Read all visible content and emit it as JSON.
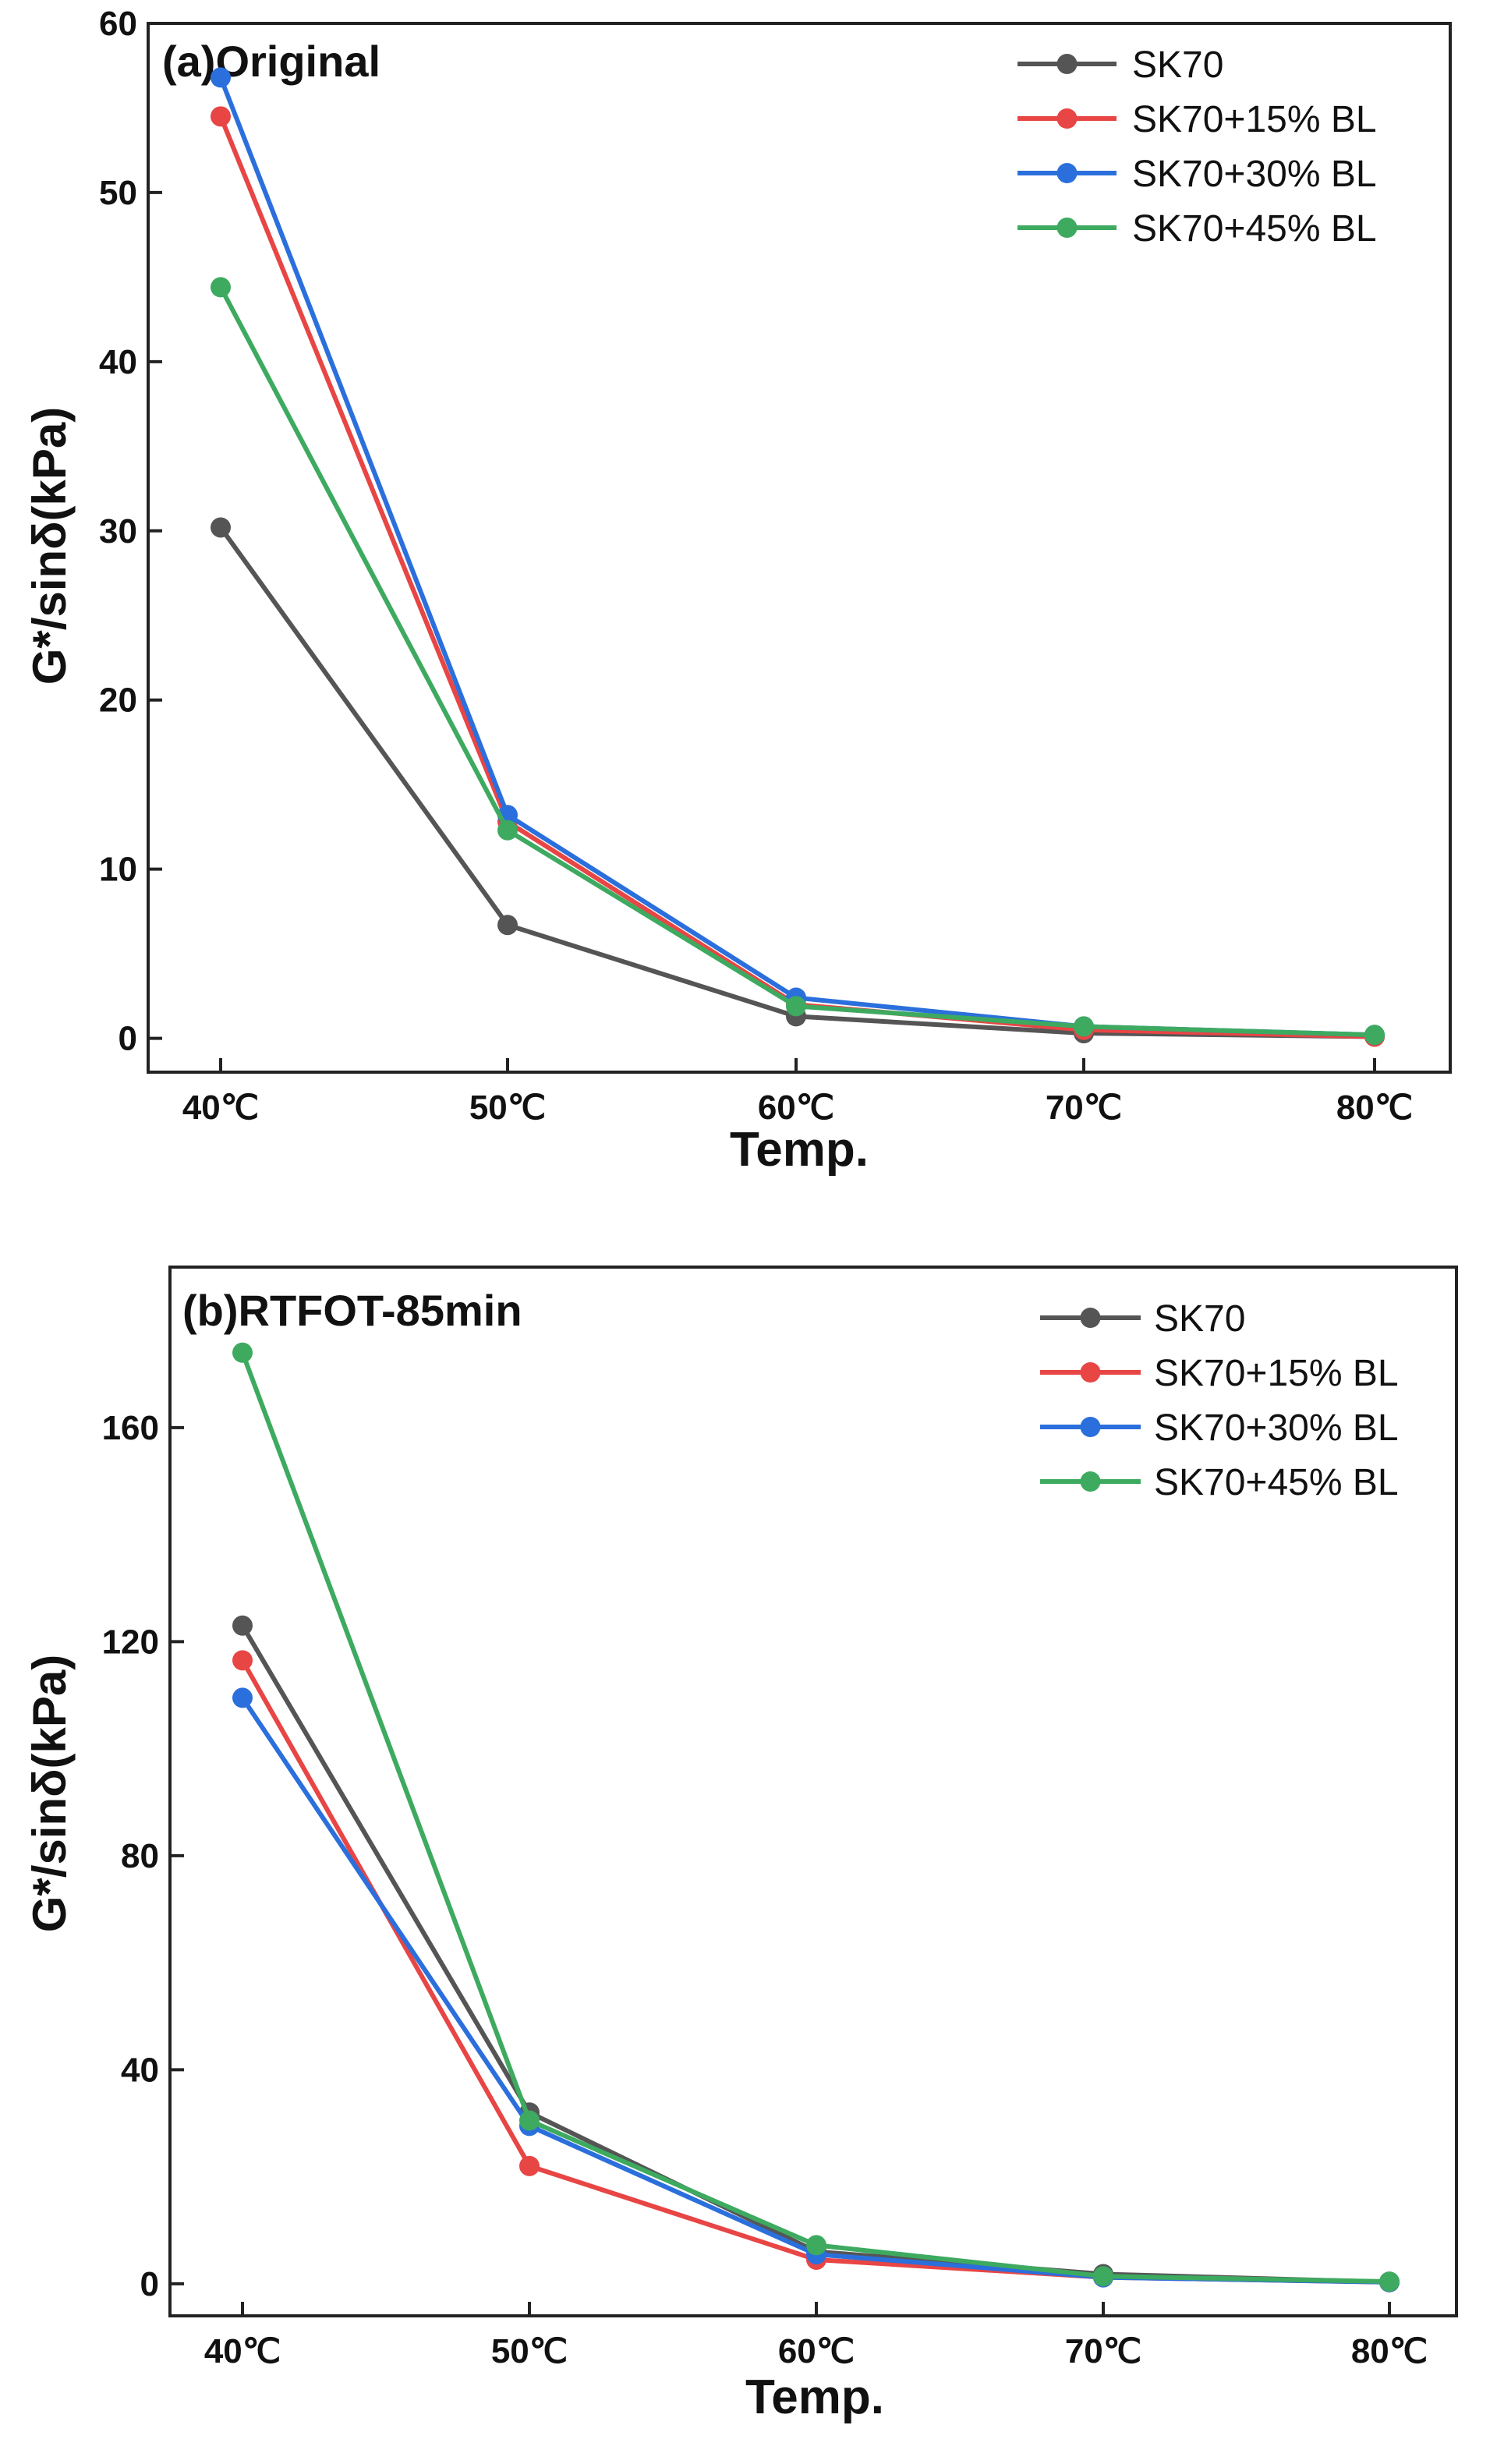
{
  "chart_data": [
    {
      "type": "line",
      "title": "(a)Original",
      "xlabel": "Temp.",
      "ylabel": "G*/sinδ(kPa)",
      "categories": [
        "40℃",
        "50℃",
        "60℃",
        "70℃",
        "80℃"
      ],
      "ylim": [
        -2,
        60
      ],
      "yticks": [
        0,
        10,
        20,
        30,
        40,
        50,
        60
      ],
      "legend": "top-right",
      "series": [
        {
          "name": "SK70",
          "color": "#555555",
          "values": [
            30.2,
            6.7,
            1.3,
            0.3,
            0.1
          ]
        },
        {
          "name": "SK70+15% BL",
          "color": "#e84545",
          "values": [
            54.5,
            12.8,
            2.0,
            0.5,
            0.1
          ]
        },
        {
          "name": "SK70+30% BL",
          "color": "#2b6fdc",
          "values": [
            56.8,
            13.2,
            2.4,
            0.7,
            0.2
          ]
        },
        {
          "name": "SK70+45% BL",
          "color": "#3daa60",
          "values": [
            44.4,
            12.3,
            1.9,
            0.7,
            0.2
          ]
        }
      ]
    },
    {
      "type": "line",
      "title": "(b)RTFOT-85min",
      "xlabel": "Temp.",
      "ylabel": "G*/sinδ(kPa)",
      "categories": [
        "40℃",
        "50℃",
        "60℃",
        "70℃",
        "80℃"
      ],
      "ylim": [
        -6,
        190
      ],
      "yticks": [
        0,
        40,
        80,
        120,
        160
      ],
      "legend": "top-right",
      "series": [
        {
          "name": "SK70",
          "color": "#555555",
          "values": [
            123,
            32,
            6,
            1.8,
            0.3
          ]
        },
        {
          "name": "SK70+15% BL",
          "color": "#e84545",
          "values": [
            116.5,
            22,
            4.5,
            1.2,
            0.3
          ]
        },
        {
          "name": "SK70+30% BL",
          "color": "#2b6fdc",
          "values": [
            109.5,
            29.5,
            5.5,
            1.2,
            0.3
          ]
        },
        {
          "name": "SK70+45% BL",
          "color": "#3daa60",
          "values": [
            174,
            30.5,
            7.2,
            1.4,
            0.4
          ]
        }
      ]
    }
  ]
}
